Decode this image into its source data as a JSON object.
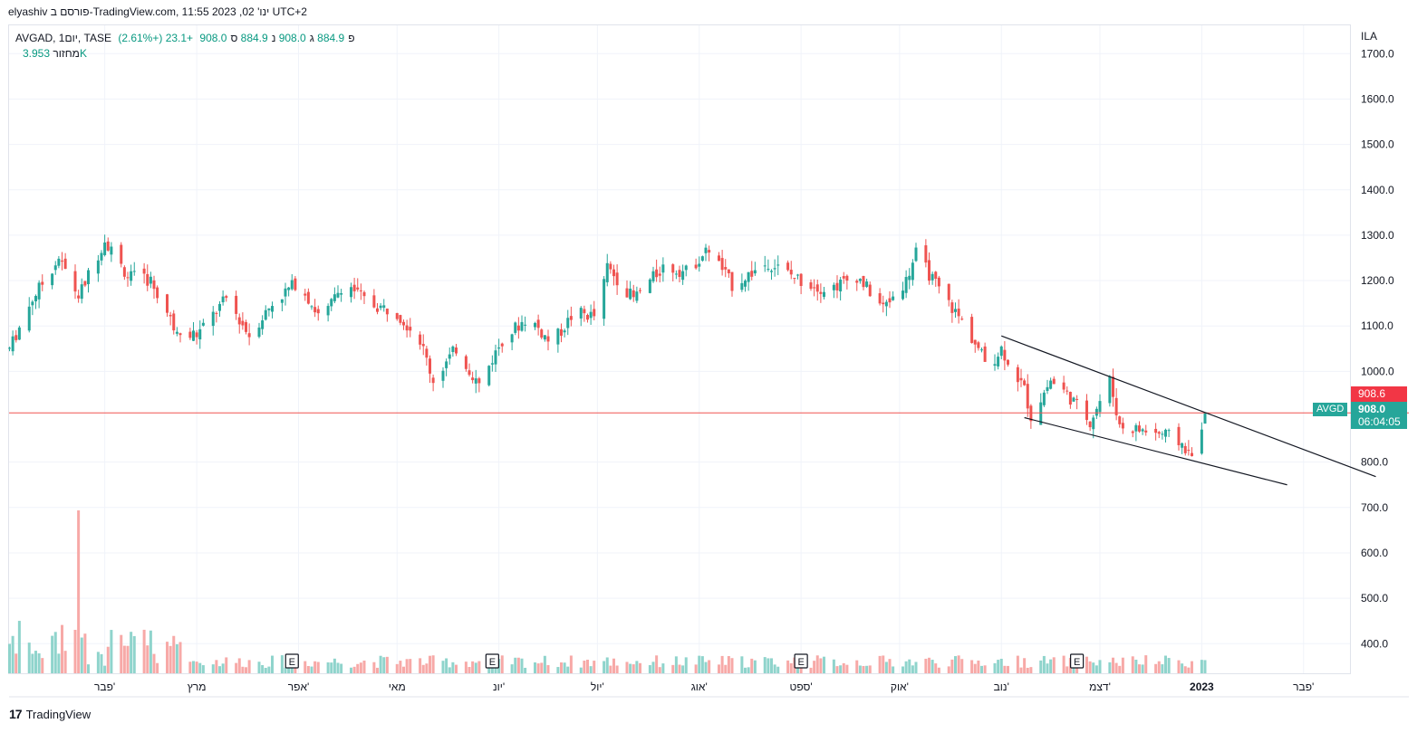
{
  "header": {
    "caption": "elyashiv פורסם ב-TradingView.com, ינו' 02, 2023 11:55 UTC+2"
  },
  "legend": {
    "symbol": "AVGAD, 1יום, TASE",
    "open_label": "פ",
    "open": "884.9",
    "high_label": "ג",
    "high": "908.0",
    "low_label": "נ",
    "low": "884.9",
    "close_label": "ס",
    "close": "908.0",
    "change": "+23.1 (+2.61%)",
    "volume_label": "מחזור",
    "volume": "3.953K"
  },
  "price_axis": {
    "currency": "ILA",
    "ticks": [
      "1700.0",
      "1600.0",
      "1500.0",
      "1400.0",
      "1300.0",
      "1200.0",
      "1100.0",
      "1000.0",
      "800.0",
      "700.0",
      "600.0",
      "500.0",
      "400.0"
    ],
    "last_price_badge": "908.6",
    "current_price": "908.0",
    "countdown": "06:04:05",
    "ticker_tag": "AVGD"
  },
  "time_axis": {
    "labels": [
      "פבר'",
      "מרץ",
      "אפר'",
      "מאי",
      "יונ'",
      "יול'",
      "אוג'",
      "ספט'",
      "אוק'",
      "נוב'",
      "דצמ'",
      "2023",
      "פבר'"
    ]
  },
  "earnings_marker": "E",
  "footer": {
    "brand": "TradingView",
    "logo": "17"
  },
  "colors": {
    "up": "#26a69a",
    "down": "#ef5350",
    "up_volume": "#8fd4cc",
    "down_volume": "#f7a9a7",
    "price_line": "#ef5350",
    "trendline": "#131722",
    "grid": "#f0f3fa"
  },
  "chart_data": {
    "type": "candlestick",
    "symbol": "AVGAD",
    "interval": "1D",
    "y_range": [
      330,
      1720
    ],
    "current_price": 908.0,
    "last_price_line": 908.6,
    "anchors": [
      {
        "date": "2022-01-03",
        "close": 1050
      },
      {
        "date": "2022-01-10",
        "close": 1160
      },
      {
        "date": "2022-01-18",
        "close": 1250
      },
      {
        "date": "2022-01-24",
        "close": 1165
      },
      {
        "date": "2022-02-01",
        "close": 1290
      },
      {
        "date": "2022-02-08",
        "close": 1210
      },
      {
        "date": "2022-02-15",
        "close": 1200
      },
      {
        "date": "2022-02-22",
        "close": 1100
      },
      {
        "date": "2022-03-01",
        "close": 1080
      },
      {
        "date": "2022-03-10",
        "close": 1160
      },
      {
        "date": "2022-03-17",
        "close": 1080
      },
      {
        "date": "2022-03-24",
        "close": 1150
      },
      {
        "date": "2022-04-01",
        "close": 1200
      },
      {
        "date": "2022-04-08",
        "close": 1110
      },
      {
        "date": "2022-04-15",
        "close": 1200
      },
      {
        "date": "2022-04-22",
        "close": 1150
      },
      {
        "date": "2022-05-01",
        "close": 1130
      },
      {
        "date": "2022-05-08",
        "close": 1070
      },
      {
        "date": "2022-05-12",
        "close": 980
      },
      {
        "date": "2022-05-19",
        "close": 1050
      },
      {
        "date": "2022-05-26",
        "close": 970
      },
      {
        "date": "2022-06-02",
        "close": 1070
      },
      {
        "date": "2022-06-10",
        "close": 1120
      },
      {
        "date": "2022-06-17",
        "close": 1060
      },
      {
        "date": "2022-06-24",
        "close": 1130
      },
      {
        "date": "2022-07-01",
        "close": 1120
      },
      {
        "date": "2022-07-04",
        "close": 1230
      },
      {
        "date": "2022-07-12",
        "close": 1160
      },
      {
        "date": "2022-07-21",
        "close": 1230
      },
      {
        "date": "2022-07-28",
        "close": 1220
      },
      {
        "date": "2022-08-04",
        "close": 1270
      },
      {
        "date": "2022-08-11",
        "close": 1190
      },
      {
        "date": "2022-08-22",
        "close": 1240
      },
      {
        "date": "2022-09-01",
        "close": 1200
      },
      {
        "date": "2022-09-09",
        "close": 1180
      },
      {
        "date": "2022-09-18",
        "close": 1210
      },
      {
        "date": "2022-09-26",
        "close": 1140
      },
      {
        "date": "2022-10-03",
        "close": 1200
      },
      {
        "date": "2022-10-06",
        "close": 1260
      },
      {
        "date": "2022-10-13",
        "close": 1180
      },
      {
        "date": "2022-10-21",
        "close": 1100
      },
      {
        "date": "2022-10-28",
        "close": 1010
      },
      {
        "date": "2022-11-01",
        "close": 1050
      },
      {
        "date": "2022-11-08",
        "close": 960
      },
      {
        "date": "2022-11-10",
        "close": 900
      },
      {
        "date": "2022-11-16",
        "close": 980
      },
      {
        "date": "2022-11-21",
        "close": 950
      },
      {
        "date": "2022-11-28",
        "close": 890
      },
      {
        "date": "2022-12-04",
        "close": 980
      },
      {
        "date": "2022-12-07",
        "close": 880
      },
      {
        "date": "2022-12-14",
        "close": 870
      },
      {
        "date": "2022-12-21",
        "close": 860
      },
      {
        "date": "2022-12-26",
        "close": 840
      },
      {
        "date": "2022-12-29",
        "close": 810
      },
      {
        "date": "2023-01-01",
        "close": 885
      },
      {
        "date": "2023-01-02",
        "close": 908
      }
    ],
    "trendlines": [
      {
        "name": "upper",
        "from": {
          "date": "2022-11-01",
          "price": 1078
        },
        "to": {
          "date": "2023-02-23",
          "price": 768
        }
      },
      {
        "name": "lower",
        "from": {
          "date": "2022-11-08",
          "price": 898
        },
        "to": {
          "date": "2023-01-27",
          "price": 750
        }
      }
    ],
    "earnings_dates": [
      "2022-03-30",
      "2022-05-30",
      "2022-09-01",
      "2022-11-24"
    ],
    "volume_spike": {
      "date": "2022-01-24",
      "value": 680
    }
  }
}
